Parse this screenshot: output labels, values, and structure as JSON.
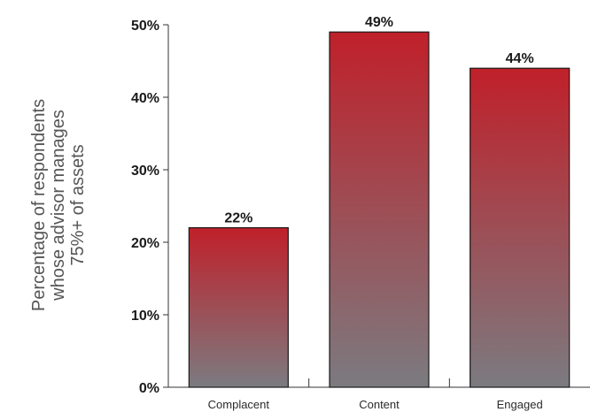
{
  "chart_data": {
    "type": "bar",
    "categories": [
      "Complacent",
      "Content",
      "Engaged"
    ],
    "values": [
      22,
      49,
      44
    ],
    "data_labels": [
      "22%",
      "49%",
      "44%"
    ],
    "title": "",
    "xlabel": "",
    "ylabel_lines": [
      "Percentage of respondents",
      "whose advisor manages",
      "75%+ of assets"
    ],
    "ylim": [
      0,
      50
    ],
    "yticks": [
      {
        "value": 0,
        "label": "0%"
      },
      {
        "value": 10,
        "label": "10%"
      },
      {
        "value": 20,
        "label": "20%"
      },
      {
        "value": 30,
        "label": "30%"
      },
      {
        "value": 40,
        "label": "40%"
      },
      {
        "value": 50,
        "label": "50%"
      }
    ],
    "grid": false,
    "legend": "none",
    "bar_gradient": {
      "top": "#c0202a",
      "bottom": "#7b7b80"
    },
    "bar_outline": "#1a1a1a"
  }
}
